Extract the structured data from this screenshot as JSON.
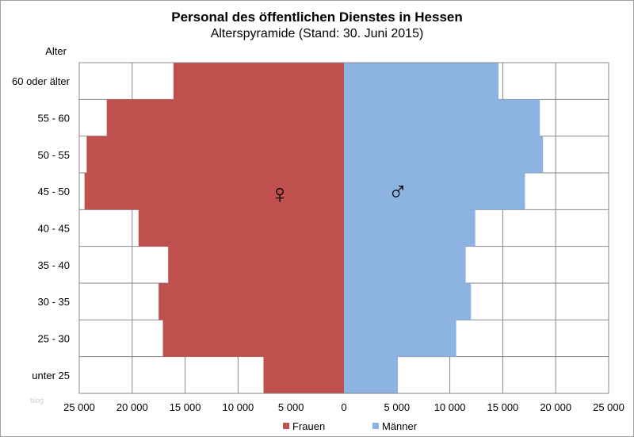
{
  "chart_data": {
    "type": "bar",
    "orientation": "horizontal",
    "title": "Personal des öffentlichen Dienstes in Hessen",
    "subtitle": "Alterspyramide (Stand: 30. Juni 2015)",
    "ylabel": "Alter",
    "categories": [
      "60 oder älter",
      "55 - 60",
      "50 - 55",
      "45 - 50",
      "40 - 45",
      "35 - 40",
      "30 - 35",
      "25 - 30",
      "unter 25"
    ],
    "series": [
      {
        "name": "Frauen",
        "color": "#c0504d",
        "symbol": "♀",
        "values": [
          16100,
          22400,
          24300,
          24500,
          19400,
          16600,
          17500,
          17100,
          7600
        ]
      },
      {
        "name": "Männer",
        "color": "#8db3e2",
        "symbol": "♂",
        "values": [
          14600,
          18500,
          18800,
          17100,
          12400,
          11500,
          12000,
          10600,
          5100
        ]
      }
    ],
    "xlim": [
      -25000,
      25000
    ],
    "xticks": [
      -25000,
      -20000,
      -15000,
      -10000,
      -5000,
      0,
      5000,
      10000,
      15000,
      20000,
      25000
    ],
    "xtick_labels": [
      "25 000",
      "20 000",
      "15 000",
      "10 000",
      "5 000",
      "0",
      "5 000",
      "10 000",
      "15 000",
      "20 000",
      "25 000"
    ],
    "legend": "bottom",
    "grid": true
  },
  "watermark": "blog"
}
